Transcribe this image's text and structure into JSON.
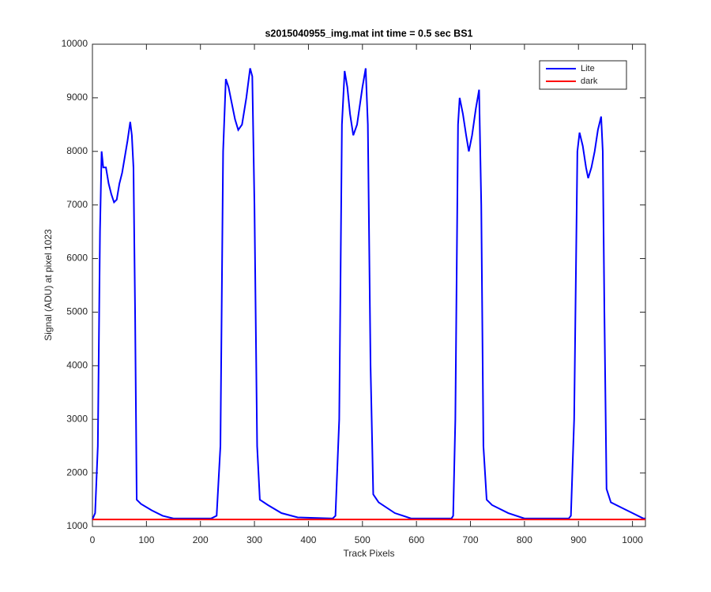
{
  "chart_data": {
    "type": "line",
    "title": "s2015040955_img.mat int time = 0.5 sec   BS1",
    "x_label": "Track Pixels",
    "y_label": "Signal (ADU) at pixel 1023",
    "xlim": [
      0,
      1024
    ],
    "ylim": [
      1000,
      10000
    ],
    "xticks": [
      0,
      100,
      200,
      300,
      400,
      500,
      600,
      700,
      800,
      900,
      1000
    ],
    "yticks": [
      1000,
      2000,
      3000,
      4000,
      5000,
      6000,
      7000,
      8000,
      9000,
      10000
    ],
    "grid": false,
    "legend": "upper right",
    "series": [
      {
        "name": "Lite",
        "color": "#0000ff",
        "x": [
          0,
          5,
          10,
          14,
          17,
          20,
          25,
          30,
          35,
          40,
          45,
          50,
          55,
          60,
          65,
          70,
          73,
          76,
          79,
          82,
          90,
          110,
          130,
          150,
          220,
          230,
          237,
          242,
          247,
          252,
          258,
          264,
          270,
          277,
          285,
          292,
          296,
          300,
          305,
          310,
          325,
          350,
          380,
          445,
          450,
          457,
          462,
          467,
          472,
          477,
          483,
          490,
          500,
          506,
          510,
          515,
          520,
          530,
          560,
          590,
          665,
          668,
          672,
          677,
          680,
          686,
          692,
          697,
          703,
          710,
          716,
          720,
          724,
          730,
          740,
          770,
          800,
          882,
          886,
          892,
          898,
          902,
          908,
          914,
          918,
          924,
          930,
          936,
          942,
          945,
          948,
          952,
          960,
          980,
          1000,
          1020,
          1024
        ],
        "values": [
          1130,
          1250,
          2500,
          6500,
          8000,
          7700,
          7700,
          7400,
          7200,
          7050,
          7100,
          7400,
          7600,
          7900,
          8200,
          8550,
          8300,
          7700,
          5000,
          1500,
          1420,
          1300,
          1200,
          1150,
          1150,
          1200,
          2500,
          8000,
          9350,
          9200,
          8900,
          8600,
          8400,
          8500,
          9000,
          9550,
          9400,
          7000,
          2500,
          1500,
          1400,
          1250,
          1170,
          1150,
          1200,
          3000,
          8500,
          9500,
          9200,
          8700,
          8300,
          8500,
          9200,
          9550,
          8500,
          4000,
          1600,
          1450,
          1250,
          1150,
          1150,
          1200,
          3000,
          8500,
          9000,
          8700,
          8300,
          8000,
          8300,
          8800,
          9150,
          7000,
          2500,
          1500,
          1400,
          1250,
          1150,
          1150,
          1200,
          3000,
          8000,
          8350,
          8100,
          7700,
          7500,
          7700,
          8000,
          8400,
          8650,
          8000,
          5000,
          1700,
          1450,
          1350,
          1250,
          1150,
          1150
        ]
      },
      {
        "name": "dark",
        "color": "#ff0000",
        "x": [
          0,
          1024
        ],
        "values": [
          1130,
          1130
        ]
      }
    ]
  }
}
